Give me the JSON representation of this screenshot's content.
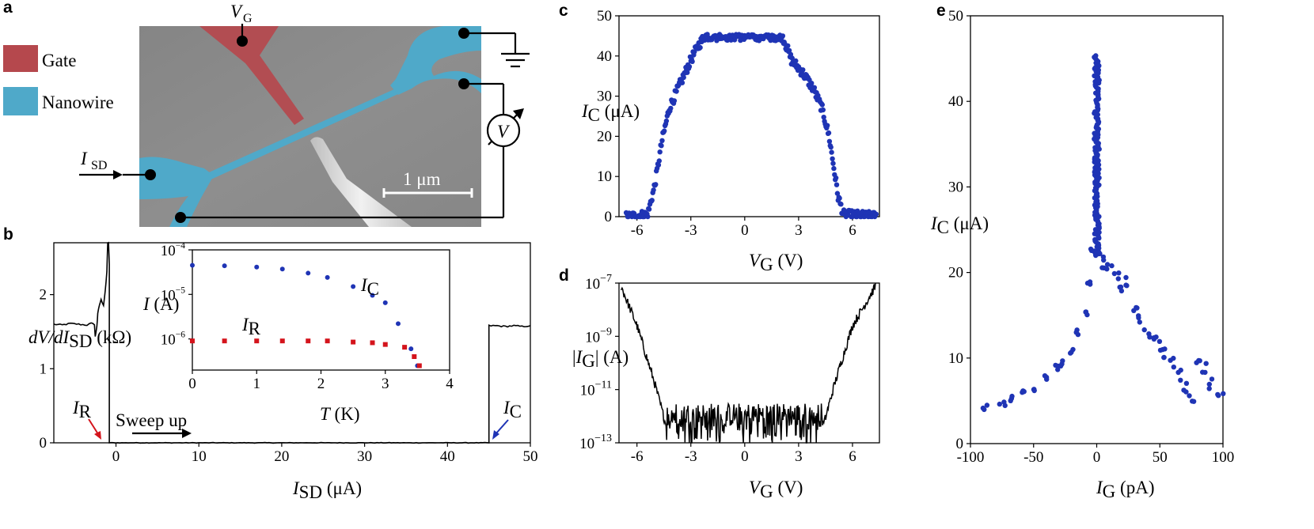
{
  "panels": {
    "a": {
      "letter": "a",
      "legend_gate": "Gate",
      "legend_nanowire": "Nanowire",
      "label_vg": "V",
      "label_vg_sub": "G",
      "label_isd": "I",
      "label_isd_sub": "SD",
      "scalebar": "1 μm",
      "meter_symbol": "V",
      "colors": {
        "gate": "#b5484d",
        "nanowire": "#4fa9c9",
        "sem": "#8c8c8c"
      }
    },
    "b": {
      "letter": "b"
    },
    "c": {
      "letter": "c"
    },
    "d": {
      "letter": "d"
    },
    "e": {
      "letter": "e"
    }
  },
  "chart_data": [
    {
      "id": "b",
      "type": "line",
      "xlabel": "I_SD (μA)",
      "ylabel": "dV/dI_SD (kΩ)",
      "xlim": [
        -7.5,
        50
      ],
      "ylim": [
        0,
        2.7
      ],
      "xticks": [
        0,
        10,
        20,
        30,
        40,
        50
      ],
      "yticks": [
        0,
        1,
        2
      ],
      "annotations": {
        "ir_label": "I",
        "ir_sub": "R",
        "ic_label": "I",
        "ic_sub": "C",
        "sweep": "Sweep up"
      },
      "colors": {
        "line": "#000000",
        "ir": "#d4141c",
        "ic": "#1f34b5"
      },
      "series": [
        {
          "name": "dV/dI",
          "x": [
            -7.5,
            -6.5,
            -5.5,
            -4.5,
            -3.5,
            -3.0,
            -2.6,
            -2.5,
            -2.3,
            -2.2,
            -2.0,
            -1.8,
            -1.5,
            -1.3,
            -1.1,
            -1.0,
            -0.9,
            -0.8,
            -0.8,
            45.0,
            45.0,
            46.0,
            47.0,
            48.0,
            49.0,
            50.0
          ],
          "y": [
            1.6,
            1.59,
            1.61,
            1.6,
            1.59,
            1.61,
            1.6,
            1.43,
            1.58,
            1.74,
            1.86,
            1.93,
            1.86,
            2.05,
            2.3,
            2.7,
            2.7,
            2.4,
            0.0,
            0.0,
            1.58,
            1.58,
            1.57,
            1.58,
            1.57,
            1.58
          ]
        }
      ]
    },
    {
      "id": "b-inset",
      "type": "scatter",
      "xlabel": "T (K)",
      "ylabel": "I (A)",
      "xlim": [
        0,
        4
      ],
      "ylim_log10": [
        -6.7,
        -4
      ],
      "xticks": [
        0,
        1,
        2,
        3,
        4
      ],
      "yticks_labels": [
        "10^-4",
        "10^-5",
        "10^-6"
      ],
      "colors": {
        "ic": "#1f34b5",
        "ir": "#d4141c"
      },
      "series": [
        {
          "name": "I_C",
          "label": "I",
          "sub": "C",
          "T": [
            0.0,
            0.5,
            1.0,
            1.4,
            1.8,
            2.1,
            2.5,
            2.8,
            3.0,
            3.2,
            3.4,
            3.5
          ],
          "I": [
            4.5e-05,
            4.4e-05,
            4.1e-05,
            3.7e-05,
            3e-05,
            2.4e-05,
            1.5e-05,
            9.5e-06,
            6.5e-06,
            2.2e-06,
            6e-07,
            2.5e-07
          ]
        },
        {
          "name": "I_R",
          "label": "I",
          "sub": "R",
          "T": [
            0.0,
            0.5,
            1.0,
            1.4,
            1.8,
            2.1,
            2.5,
            2.8,
            3.0,
            3.3,
            3.45,
            3.53
          ],
          "I": [
            9e-07,
            9e-07,
            9e-07,
            9e-07,
            9e-07,
            9e-07,
            8.5e-07,
            8.2e-07,
            7.5e-07,
            6.5e-07,
            4e-07,
            2.5e-07
          ]
        }
      ]
    },
    {
      "id": "c",
      "type": "scatter",
      "xlabel": "V_G (V)",
      "ylabel": "I_C (μA)",
      "xlim": [
        -7,
        7.5
      ],
      "ylim": [
        0,
        50
      ],
      "xticks": [
        -6,
        -3,
        0,
        3,
        6
      ],
      "yticks": [
        0,
        10,
        20,
        30,
        40,
        50
      ],
      "color": "#1f34b5",
      "shape": {
        "V": [
          -6.5,
          -5.4,
          -5.0,
          -4.6,
          -4.2,
          -3.8,
          -3.4,
          -3.0,
          -2.6,
          -2.2,
          2.1,
          2.6,
          3.2,
          3.8,
          4.3,
          4.7,
          5.0,
          5.2,
          5.5,
          7.4
        ],
        "I": [
          0.0,
          0.5,
          8.0,
          19.0,
          27.0,
          31.0,
          35.0,
          39.0,
          42.5,
          45.0,
          45.0,
          39.0,
          36.0,
          32.0,
          27.0,
          20.0,
          11.0,
          5.0,
          0.5,
          0.0
        ]
      }
    },
    {
      "id": "d",
      "type": "line",
      "xlabel": "V_G (V)",
      "ylabel": "|I_G| (A)",
      "xlim": [
        -7,
        7.5
      ],
      "ylim_log10": [
        -13,
        -7
      ],
      "xticks": [
        -6,
        -3,
        0,
        3,
        6
      ],
      "yticks_labels": [
        "10^-7",
        "10^-9",
        "10^-11",
        "10^-13"
      ],
      "color": "#000000",
      "envelope": {
        "V": [
          -6.9,
          -6.0,
          -5.0,
          -4.4,
          4.4,
          5.0,
          6.0,
          7.3
        ],
        "log10I": [
          -7.1,
          -8.6,
          -10.8,
          -12.3,
          -12.3,
          -10.8,
          -8.6,
          -7.1
        ]
      }
    },
    {
      "id": "e",
      "type": "scatter",
      "xlabel": "I_G (pA)",
      "ylabel": "I_C (μA)",
      "xlim": [
        -100,
        100
      ],
      "ylim": [
        0,
        50
      ],
      "xticks": [
        -100,
        -50,
        0,
        50,
        100
      ],
      "xtick_labels": [
        "-100",
        "-50",
        "0",
        "50",
        "100"
      ],
      "yticks": [
        0,
        10,
        20,
        30,
        40,
        50
      ],
      "color": "#1f34b5",
      "left_branch": {
        "IG": [
          -88,
          -75,
          -68,
          -60,
          -50,
          -40,
          -32,
          -26,
          -20,
          -15,
          -10,
          -6,
          -3
        ],
        "IC": [
          4.2,
          4.6,
          5.4,
          5.8,
          6.4,
          7.6,
          8.8,
          9.5,
          10.9,
          12.9,
          15.5,
          19.0,
          22.5
        ]
      },
      "right_branch": {
        "IG": [
          3,
          6,
          10,
          15,
          20,
          25,
          30,
          35,
          40,
          45,
          50,
          55,
          60,
          65,
          70,
          75,
          80,
          85,
          90,
          98
        ],
        "IC": [
          22.0,
          21.0,
          21.0,
          19.5,
          18.0,
          19.0,
          16.0,
          14.5,
          13.0,
          12.5,
          11.5,
          10.5,
          9.5,
          8.0,
          6.5,
          5.0,
          9.5,
          8.8,
          7.0,
          5.5
        ]
      }
    }
  ]
}
